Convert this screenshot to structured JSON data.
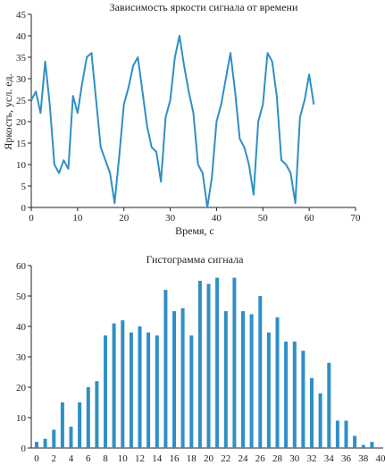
{
  "chart_data": [
    {
      "type": "line",
      "title": "Зависимость яркости сигнала от времени",
      "xlabel": "Время, с",
      "ylabel": "Яркость, усл. ед.",
      "xlim": [
        0,
        70
      ],
      "ylim": [
        0,
        45
      ],
      "xticks": [
        "0",
        "10",
        "20",
        "30",
        "40",
        "50",
        "60",
        "70"
      ],
      "yticks": [
        "0",
        "5",
        "10",
        "15",
        "20",
        "25",
        "30",
        "35",
        "40",
        "45"
      ],
      "grid": false,
      "color": "#2f8fc6",
      "series": [
        {
          "x": [
            0,
            1,
            2,
            3,
            4,
            5,
            6,
            7,
            8,
            9,
            10,
            11,
            12,
            13,
            14,
            15,
            16,
            17,
            18,
            19,
            20,
            21,
            22,
            23,
            24,
            25,
            26,
            27,
            28,
            29,
            30,
            31,
            32,
            33,
            34,
            35,
            36,
            37,
            38,
            39,
            40,
            41,
            42,
            43,
            44,
            45,
            46,
            47,
            48,
            49,
            50,
            51,
            52,
            53,
            54,
            55,
            56,
            57,
            58,
            59,
            60,
            61
          ],
          "y": [
            25,
            27,
            22,
            34,
            24,
            10,
            8,
            11,
            9,
            26,
            22,
            29,
            35,
            36,
            25,
            14,
            11,
            8,
            1,
            12,
            24,
            28,
            33,
            35,
            27,
            19,
            14,
            13,
            6,
            21,
            25,
            35,
            40,
            33,
            27,
            22,
            10,
            8,
            0,
            7,
            20,
            24,
            30,
            36,
            27,
            16,
            14,
            10,
            3,
            20,
            24,
            36,
            34,
            26,
            11,
            10,
            8,
            1,
            21,
            25,
            31,
            24
          ]
        }
      ]
    },
    {
      "type": "bar",
      "title": "Гистограмма сигнала",
      "xlim": [
        0,
        40
      ],
      "ylim": [
        0,
        60
      ],
      "xticks": [
        "0",
        "2",
        "4",
        "6",
        "8",
        "10",
        "12",
        "14",
        "16",
        "18",
        "20",
        "22",
        "24",
        "26",
        "28",
        "30",
        "32",
        "34",
        "36",
        "38",
        "40"
      ],
      "yticks": [
        "0",
        "10",
        "20",
        "30",
        "40",
        "50",
        "60"
      ],
      "grid": false,
      "color": "#2f8fc6",
      "categories": [
        0,
        1,
        2,
        3,
        4,
        5,
        6,
        7,
        8,
        9,
        10,
        11,
        12,
        13,
        14,
        15,
        16,
        17,
        18,
        19,
        20,
        21,
        22,
        23,
        24,
        25,
        26,
        27,
        28,
        29,
        30,
        31,
        32,
        33,
        34,
        35,
        36,
        37,
        38,
        39,
        40
      ],
      "values": [
        2,
        3,
        6,
        15,
        7,
        15,
        20,
        22,
        37,
        41,
        42,
        38,
        40,
        38,
        37,
        52,
        45,
        46,
        37,
        55,
        54,
        56,
        45,
        56,
        45,
        44,
        50,
        38,
        43,
        35,
        35,
        32,
        23,
        18,
        28,
        9,
        9,
        4,
        1,
        2,
        0
      ]
    }
  ]
}
